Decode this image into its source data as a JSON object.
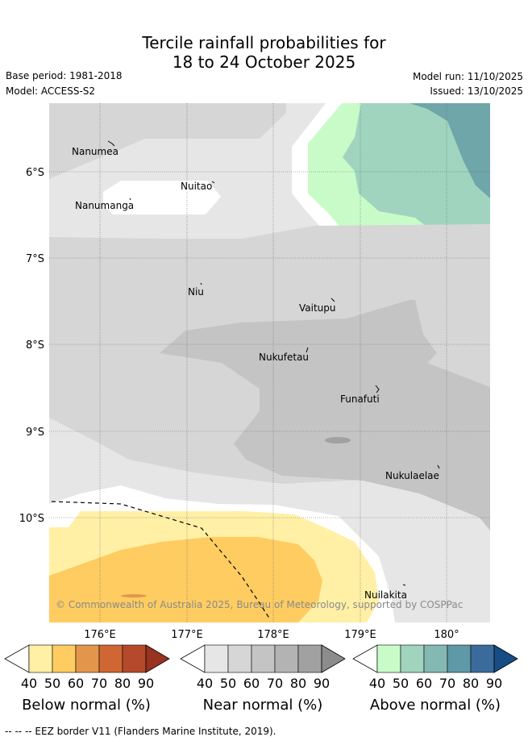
{
  "header": {
    "title_line1": "Tercile rainfall probabilities for",
    "title_line2": "18 to 24 October 2025",
    "base_period": "Base period: 1981-2018",
    "model": "Model: ACCESS-S2",
    "model_run": "Model run: 11/10/2025",
    "issued": "Issued: 13/10/2025"
  },
  "map": {
    "islands": [
      "Nanumea",
      "Nuitao",
      "Nanumanga",
      "Niu",
      "Vaitupu",
      "Nukufetau",
      "Funafuti",
      "Nukulaelae",
      "Nuilakita"
    ],
    "lat_labels": [
      "6°S",
      "7°S",
      "8°S",
      "9°S",
      "10°S"
    ],
    "lon_labels": [
      "176°E",
      "177°E",
      "178°E",
      "179°E",
      "180°"
    ],
    "copyright": "© Commonwealth of Australia 2025, Bureau of Meteorology, supported by COSPPac"
  },
  "colorbars": [
    {
      "title": "Below normal (%)",
      "ticks": [
        "40",
        "50",
        "60",
        "70",
        "80",
        "90"
      ],
      "colors": [
        "#fff0a6",
        "#fecc61",
        "#e3964b",
        "#d06634",
        "#b44a2b",
        "#99321f"
      ]
    },
    {
      "title": "Near normal (%)",
      "ticks": [
        "40",
        "50",
        "60",
        "70",
        "80",
        "90"
      ],
      "colors": [
        "#e6e6e6",
        "#d6d6d6",
        "#c4c4c4",
        "#b3b3b3",
        "#a1a1a1",
        "#8c8c8c"
      ]
    },
    {
      "title": "Above normal (%)",
      "ticks": [
        "40",
        "50",
        "60",
        "70",
        "80",
        "90"
      ],
      "colors": [
        "#c8fbc8",
        "#a0d4bf",
        "#84b9b3",
        "#5f99a7",
        "#3a6b9c",
        "#174d84"
      ]
    }
  ],
  "footer": "--  --  -- EEZ border V11 (Flanders Marine Institute, 2019)."
}
